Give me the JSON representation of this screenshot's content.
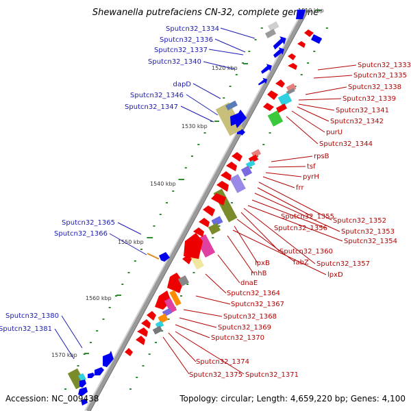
{
  "title": "Shewanella putrefaciens CN-32, complete genome",
  "accession": "Accession: NC_009438",
  "summary": "Topology: circular; Length: 4,659,220 bp; Genes: 4,100",
  "colors": {
    "backbone": "#8c8c8c",
    "forward_strand": "#0000ee",
    "reverse_strand": "#ee0000",
    "left_label": "#1a1ab3",
    "right_label": "#b30000",
    "tick": "#2e8b2e"
  },
  "ticks": [
    {
      "label": "1510 kbp"
    },
    {
      "label": "1520 kbp"
    },
    {
      "label": "1530 kbp"
    },
    {
      "label": "1540 kbp"
    },
    {
      "label": "1550 kbp"
    },
    {
      "label": "1560 kbp"
    },
    {
      "label": "1570 kbp"
    }
  ],
  "left_labels": [
    "Sputcn32_1334",
    "Sputcn32_1336",
    "Sputcn32_1337",
    "Sputcn32_1340",
    "dapD",
    "Sputcn32_1346",
    "Sputcn32_1347",
    "Sputcn32_1365",
    "Sputcn32_1366",
    "Sputcn32_1380",
    "Sputcn32_1381"
  ],
  "right_labels": [
    "Sputcn32_1333",
    "Sputcn32_1335",
    "Sputcn32_1338",
    "Sputcn32_1339",
    "Sputcn32_1341",
    "Sputcn32_1342",
    "purU",
    "Sputcn32_1344",
    "rpsB",
    "tsf",
    "pyrH",
    "frr",
    "Sputcn32_1352",
    "Sputcn32_1355",
    "Sputcn32_1353",
    "Sputcn32_1356",
    "Sputcn32_1354",
    "Sputcn32_1360",
    "lpxB",
    "fabZ",
    "Sputcn32_1357",
    "lpxD",
    "rnhB",
    "dnaE",
    "Sputcn32_1364",
    "Sputcn32_1367",
    "Sputcn32_1368",
    "Sputcn32_1369",
    "Sputcn32_1370",
    "Sputcn32_1374",
    "Sputcn32_1375",
    "Sputcn32_1371"
  ]
}
